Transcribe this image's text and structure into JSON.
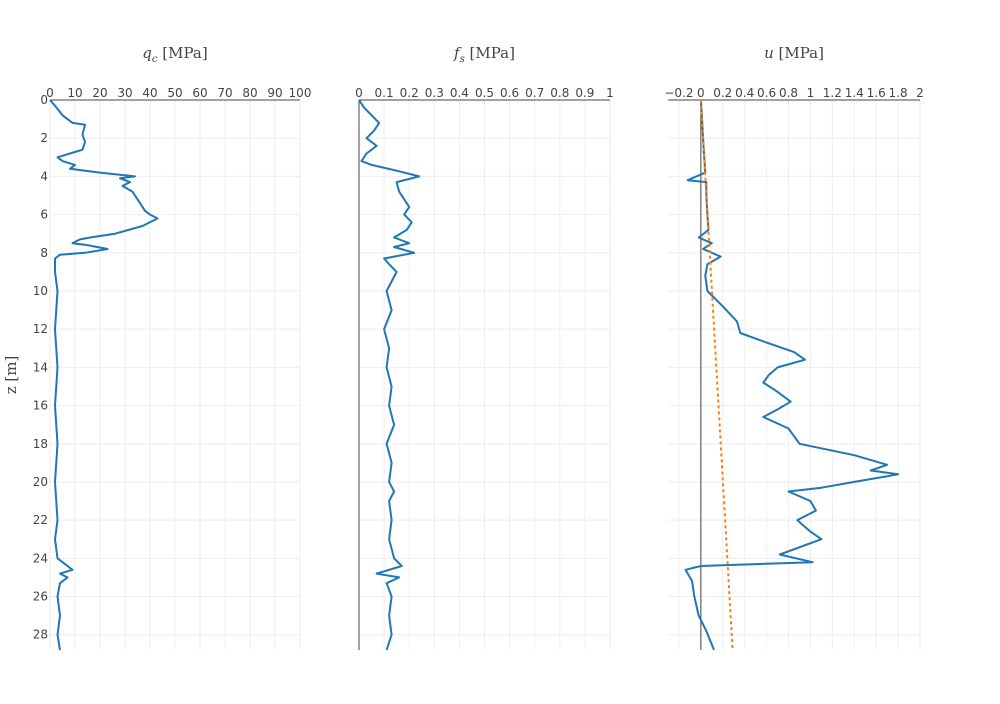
{
  "chart_data": {
    "type": "line",
    "ylabel": "z [m]",
    "y_reversed": true,
    "ylim": [
      0,
      28.8
    ],
    "yticks": [
      0,
      2,
      4,
      6,
      8,
      10,
      12,
      14,
      16,
      18,
      20,
      22,
      24,
      26,
      28
    ],
    "panels": [
      {
        "id": "qc",
        "title": "q_c [MPa]",
        "title_symbol": "q",
        "title_sub": "c",
        "title_unit": " [MPa]",
        "xlim": [
          0,
          100
        ],
        "xticks": [
          0,
          10,
          20,
          30,
          40,
          50,
          60,
          70,
          80,
          90,
          100
        ],
        "xtick_labels": [
          "0",
          "10",
          "20",
          "30",
          "40",
          "50",
          "60",
          "70",
          "80",
          "90",
          "100"
        ],
        "show_zero_line": false,
        "series": [
          {
            "color": "#1f77b4",
            "points": [
              [
                0,
                0
              ],
              [
                2,
                0.3
              ],
              [
                5,
                0.8
              ],
              [
                9,
                1.2
              ],
              [
                14,
                1.3
              ],
              [
                13,
                1.8
              ],
              [
                14,
                2.2
              ],
              [
                13,
                2.6
              ],
              [
                8,
                2.8
              ],
              [
                3,
                3.0
              ],
              [
                5,
                3.2
              ],
              [
                10,
                3.4
              ],
              [
                8,
                3.6
              ],
              [
                20,
                3.8
              ],
              [
                34,
                4.0
              ],
              [
                28,
                4.1
              ],
              [
                32,
                4.3
              ],
              [
                29,
                4.5
              ],
              [
                33,
                4.8
              ],
              [
                35,
                5.2
              ],
              [
                37,
                5.6
              ],
              [
                38,
                5.8
              ],
              [
                40,
                6.0
              ],
              [
                43,
                6.2
              ],
              [
                37,
                6.6
              ],
              [
                26,
                7.0
              ],
              [
                16,
                7.2
              ],
              [
                12,
                7.3
              ],
              [
                9,
                7.5
              ],
              [
                15,
                7.6
              ],
              [
                23,
                7.8
              ],
              [
                14,
                8.0
              ],
              [
                4,
                8.1
              ],
              [
                2,
                8.3
              ],
              [
                2,
                9
              ],
              [
                3,
                10
              ],
              [
                2,
                12
              ],
              [
                3,
                14
              ],
              [
                2,
                16
              ],
              [
                3,
                18
              ],
              [
                2,
                20
              ],
              [
                3,
                22
              ],
              [
                2,
                23
              ],
              [
                3,
                24.0
              ],
              [
                6,
                24.3
              ],
              [
                9,
                24.6
              ],
              [
                4,
                24.8
              ],
              [
                7,
                25.0
              ],
              [
                4,
                25.3
              ],
              [
                3,
                26
              ],
              [
                4,
                27
              ],
              [
                3,
                28
              ],
              [
                4,
                28.8
              ]
            ]
          }
        ]
      },
      {
        "id": "fs",
        "title": "f_s [MPa]",
        "title_symbol": "f",
        "title_sub": "s",
        "title_unit": " [MPa]",
        "xlim": [
          0,
          1
        ],
        "xticks": [
          0,
          0.1,
          0.2,
          0.3,
          0.4,
          0.5,
          0.6,
          0.7,
          0.8,
          0.9,
          1
        ],
        "xtick_labels": [
          "0",
          "0.1",
          "0.2",
          "0.3",
          "0.4",
          "0.5",
          "0.6",
          "0.7",
          "0.8",
          "0.9",
          "1"
        ],
        "show_zero_line": true,
        "series": [
          {
            "color": "#1f77b4",
            "points": [
              [
                0,
                0
              ],
              [
                0.02,
                0.4
              ],
              [
                0.05,
                0.8
              ],
              [
                0.08,
                1.2
              ],
              [
                0.06,
                1.6
              ],
              [
                0.03,
                2.0
              ],
              [
                0.07,
                2.4
              ],
              [
                0.03,
                2.8
              ],
              [
                0.01,
                3.2
              ],
              [
                0.05,
                3.4
              ],
              [
                0.15,
                3.7
              ],
              [
                0.24,
                4.0
              ],
              [
                0.15,
                4.3
              ],
              [
                0.16,
                4.8
              ],
              [
                0.18,
                5.2
              ],
              [
                0.2,
                5.6
              ],
              [
                0.18,
                6.0
              ],
              [
                0.21,
                6.4
              ],
              [
                0.19,
                6.8
              ],
              [
                0.14,
                7.2
              ],
              [
                0.2,
                7.5
              ],
              [
                0.14,
                7.7
              ],
              [
                0.22,
                8.0
              ],
              [
                0.1,
                8.3
              ],
              [
                0.12,
                8.6
              ],
              [
                0.15,
                9.0
              ],
              [
                0.11,
                10
              ],
              [
                0.13,
                11
              ],
              [
                0.1,
                12
              ],
              [
                0.12,
                13
              ],
              [
                0.11,
                14
              ],
              [
                0.13,
                15
              ],
              [
                0.12,
                16
              ],
              [
                0.14,
                17
              ],
              [
                0.11,
                18
              ],
              [
                0.13,
                19
              ],
              [
                0.12,
                20
              ],
              [
                0.14,
                20.5
              ],
              [
                0.12,
                21
              ],
              [
                0.13,
                22
              ],
              [
                0.12,
                23
              ],
              [
                0.14,
                24
              ],
              [
                0.17,
                24.4
              ],
              [
                0.07,
                24.8
              ],
              [
                0.16,
                25.0
              ],
              [
                0.11,
                25.3
              ],
              [
                0.13,
                26
              ],
              [
                0.12,
                27
              ],
              [
                0.13,
                28
              ],
              [
                0.11,
                28.8
              ]
            ]
          }
        ]
      },
      {
        "id": "u",
        "title": "u [MPa]",
        "title_symbol": "u",
        "title_sub": "",
        "title_unit": " [MPa]",
        "xlim": [
          -0.3,
          2.0
        ],
        "xticks": [
          -0.2,
          0,
          0.2,
          0.4,
          0.6,
          0.8,
          1,
          1.2,
          1.4,
          1.6,
          1.8,
          2
        ],
        "xtick_labels": [
          "−0.2",
          "0",
          "0.2",
          "0.4",
          "0.6",
          "0.8",
          "1",
          "1.2",
          "1.4",
          "1.6",
          "1.8",
          "2"
        ],
        "show_zero_line": true,
        "series": [
          {
            "color": "#1f77b4",
            "style": "solid",
            "points": [
              [
                0,
                0
              ],
              [
                0.01,
                1
              ],
              [
                0.02,
                2
              ],
              [
                0.03,
                3
              ],
              [
                0.04,
                3.8
              ],
              [
                -0.12,
                4.2
              ],
              [
                0.05,
                4.3
              ],
              [
                0.05,
                5
              ],
              [
                0.06,
                6
              ],
              [
                0.07,
                6.8
              ],
              [
                -0.02,
                7.2
              ],
              [
                0.1,
                7.5
              ],
              [
                0.02,
                7.8
              ],
              [
                0.18,
                8.2
              ],
              [
                0.06,
                8.6
              ],
              [
                0.04,
                9.2
              ],
              [
                0.06,
                10
              ],
              [
                0.2,
                10.8
              ],
              [
                0.33,
                11.6
              ],
              [
                0.36,
                12.2
              ],
              [
                0.55,
                12.6
              ],
              [
                0.85,
                13.2
              ],
              [
                0.95,
                13.6
              ],
              [
                0.7,
                14.0
              ],
              [
                0.62,
                14.4
              ],
              [
                0.57,
                14.8
              ],
              [
                0.68,
                15.2
              ],
              [
                0.82,
                15.8
              ],
              [
                0.7,
                16.2
              ],
              [
                0.57,
                16.6
              ],
              [
                0.8,
                17.2
              ],
              [
                0.9,
                18.0
              ],
              [
                1.4,
                18.6
              ],
              [
                1.7,
                19.1
              ],
              [
                1.55,
                19.4
              ],
              [
                1.8,
                19.6
              ],
              [
                1.4,
                20.0
              ],
              [
                1.1,
                20.3
              ],
              [
                0.8,
                20.5
              ],
              [
                1.0,
                21.0
              ],
              [
                1.05,
                21.5
              ],
              [
                0.88,
                22.0
              ],
              [
                1.0,
                22.6
              ],
              [
                1.1,
                23.0
              ],
              [
                0.72,
                23.8
              ],
              [
                1.02,
                24.2
              ],
              [
                0.0,
                24.4
              ],
              [
                -0.14,
                24.6
              ],
              [
                -0.08,
                25.2
              ],
              [
                -0.06,
                26
              ],
              [
                -0.02,
                27
              ],
              [
                0.05,
                27.8
              ],
              [
                0.12,
                28.8
              ]
            ]
          },
          {
            "color": "#ff7f0e",
            "style": "dotted",
            "points": [
              [
                0,
                0
              ],
              [
                0.29,
                28.8
              ]
            ]
          }
        ]
      }
    ]
  }
}
